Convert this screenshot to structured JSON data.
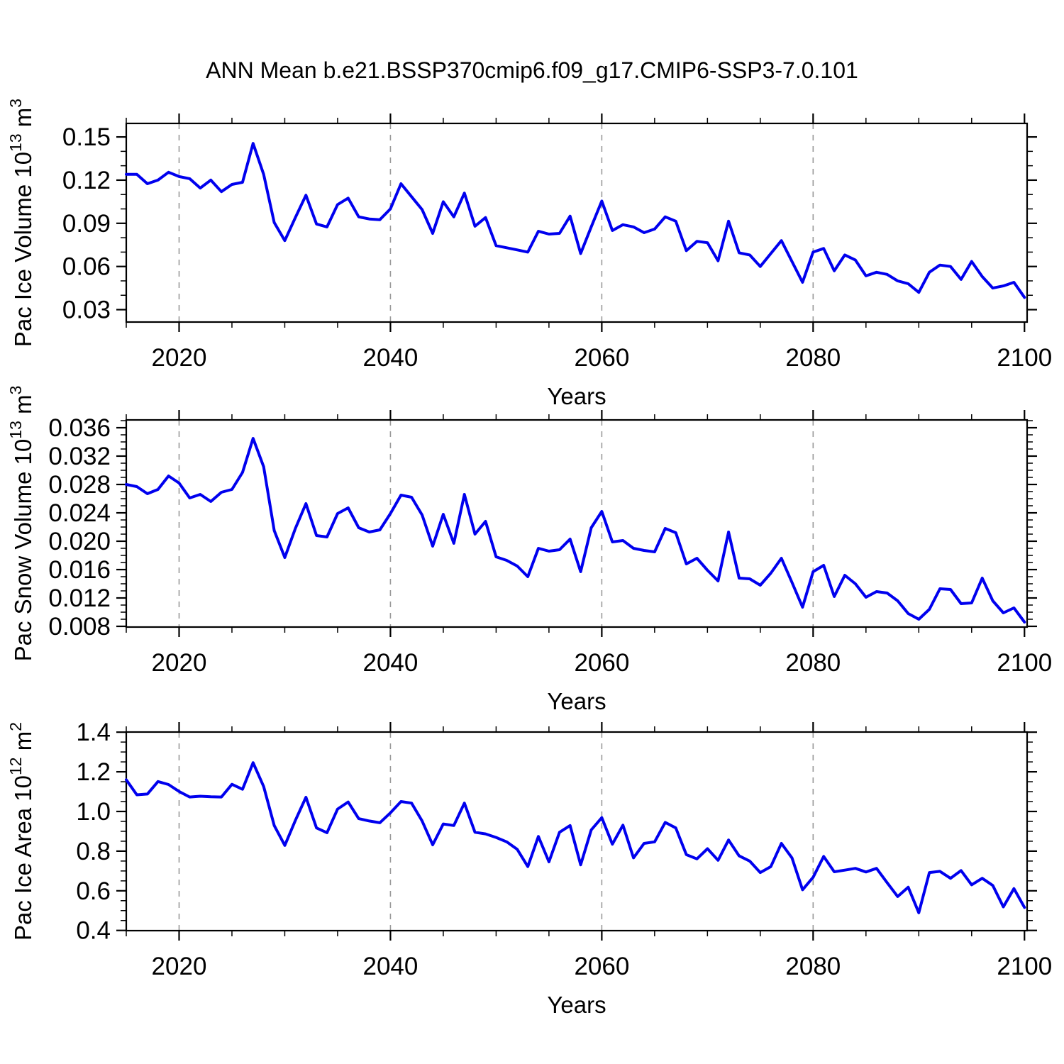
{
  "colors": {
    "line": "#0000EE",
    "grid": "#999999",
    "frame": "#000000",
    "text": "#000000",
    "background": "#FFFFFF"
  },
  "chart_data": {
    "type": "line",
    "title": "ANN Mean b.e21.BSSP370cmip6.f09_g17.CMIP6-SSP3-7.0.101",
    "xlabel": "Years",
    "legend": "none",
    "grid_x": [
      2020,
      2040,
      2060,
      2080
    ],
    "xticks_major": [
      2020,
      2040,
      2060,
      2080,
      2100
    ],
    "xtick_labels": [
      "2020",
      "2040",
      "2060",
      "2080",
      "2100"
    ],
    "xticks_minor_step": 5,
    "xlim": [
      2015,
      2100.25
    ],
    "x": [
      2015,
      2016,
      2017,
      2018,
      2019,
      2020,
      2021,
      2022,
      2023,
      2024,
      2025,
      2026,
      2027,
      2028,
      2029,
      2030,
      2031,
      2032,
      2033,
      2034,
      2035,
      2036,
      2037,
      2038,
      2039,
      2040,
      2041,
      2042,
      2043,
      2044,
      2045,
      2046,
      2047,
      2048,
      2049,
      2050,
      2051,
      2052,
      2053,
      2054,
      2055,
      2056,
      2057,
      2058,
      2059,
      2060,
      2061,
      2062,
      2063,
      2064,
      2065,
      2066,
      2067,
      2068,
      2069,
      2070,
      2071,
      2072,
      2073,
      2074,
      2075,
      2076,
      2077,
      2078,
      2079,
      2080,
      2081,
      2082,
      2083,
      2084,
      2085,
      2086,
      2087,
      2088,
      2089,
      2090,
      2091,
      2092,
      2093,
      2094,
      2095,
      2096,
      2097,
      2098,
      2099,
      2100
    ],
    "panels": [
      {
        "id": "pac-ice-volume",
        "ylabel": "Pac Ice Volume 10^13 m^3",
        "ylabel_parts": [
          [
            "n",
            "Pac Ice Volume 10"
          ],
          [
            "s",
            "13"
          ],
          [
            "n",
            " m"
          ],
          [
            "s",
            "3"
          ]
        ],
        "ytick_labels": [
          "0.03",
          "0.06",
          "0.09",
          "0.12",
          "0.15"
        ],
        "ytick_values": [
          0.03,
          0.06,
          0.09,
          0.12,
          0.15
        ],
        "yminor_step": 0.01,
        "ylim": [
          0.0214,
          0.1594
        ],
        "values": [
          0.124,
          0.124,
          0.1175,
          0.12,
          0.1255,
          0.1225,
          0.121,
          0.1145,
          0.12,
          0.112,
          0.117,
          0.1185,
          0.1455,
          0.124,
          0.0905,
          0.078,
          0.094,
          0.1095,
          0.0895,
          0.0875,
          0.103,
          0.1075,
          0.0945,
          0.093,
          0.0925,
          0.1,
          0.1175,
          0.1085,
          0.0995,
          0.083,
          0.105,
          0.0945,
          0.111,
          0.088,
          0.094,
          0.0745,
          0.073,
          0.0715,
          0.07,
          0.0845,
          0.0825,
          0.083,
          0.095,
          0.069,
          0.0875,
          0.1055,
          0.085,
          0.089,
          0.0875,
          0.0835,
          0.086,
          0.0945,
          0.0915,
          0.071,
          0.0775,
          0.0765,
          0.064,
          0.0915,
          0.0695,
          0.068,
          0.06,
          0.069,
          0.078,
          0.0635,
          0.049,
          0.07,
          0.0725,
          0.057,
          0.068,
          0.0645,
          0.0535,
          0.056,
          0.0545,
          0.05,
          0.048,
          0.042,
          0.056,
          0.061,
          0.06,
          0.051,
          0.0635,
          0.053,
          0.045,
          0.0465,
          0.049,
          0.0385
        ]
      },
      {
        "id": "pac-snow-volume",
        "ylabel": "Pac Snow Volume 10^13 m^3",
        "ylabel_parts": [
          [
            "n",
            "Pac Snow Volume 10"
          ],
          [
            "s",
            "13"
          ],
          [
            "n",
            " m"
          ],
          [
            "s",
            "3"
          ]
        ],
        "ytick_labels": [
          "0.008",
          "0.012",
          "0.016",
          "0.020",
          "0.024",
          "0.028",
          "0.032",
          "0.036"
        ],
        "ytick_values": [
          0.008,
          0.012,
          0.016,
          0.02,
          0.024,
          0.028,
          0.032,
          0.036
        ],
        "yminor_step": 0.001,
        "ylim": [
          0.0079,
          0.0371
        ],
        "values": [
          0.028,
          0.0277,
          0.0267,
          0.0273,
          0.0292,
          0.0282,
          0.0261,
          0.0266,
          0.0256,
          0.0269,
          0.0273,
          0.0297,
          0.0345,
          0.0305,
          0.0215,
          0.0177,
          0.0218,
          0.0253,
          0.0208,
          0.0206,
          0.0239,
          0.0247,
          0.0219,
          0.0213,
          0.0216,
          0.0239,
          0.0265,
          0.0262,
          0.0237,
          0.0193,
          0.0238,
          0.0197,
          0.0266,
          0.021,
          0.0228,
          0.0178,
          0.0173,
          0.0165,
          0.015,
          0.019,
          0.0186,
          0.0188,
          0.0203,
          0.0157,
          0.0219,
          0.0242,
          0.0199,
          0.0201,
          0.019,
          0.0187,
          0.0185,
          0.0218,
          0.0212,
          0.0168,
          0.0176,
          0.0159,
          0.0144,
          0.0213,
          0.0148,
          0.0147,
          0.0138,
          0.0155,
          0.0176,
          0.0142,
          0.0107,
          0.0157,
          0.0166,
          0.0122,
          0.0152,
          0.014,
          0.0121,
          0.0129,
          0.0127,
          0.0116,
          0.0098,
          0.009,
          0.0104,
          0.0133,
          0.0132,
          0.0112,
          0.0113,
          0.0148,
          0.0116,
          0.0099,
          0.0106,
          0.0086
        ]
      },
      {
        "id": "pac-ice-area",
        "ylabel": "Pac Ice Area 10^12 m^2",
        "ylabel_parts": [
          [
            "n",
            "Pac Ice Area 10"
          ],
          [
            "s",
            "12"
          ],
          [
            "n",
            " m"
          ],
          [
            "s",
            "2"
          ]
        ],
        "ytick_labels": [
          "0.4",
          "0.6",
          "0.8",
          "1.0",
          "1.2",
          "1.4"
        ],
        "ytick_values": [
          0.4,
          0.6,
          0.8,
          1.0,
          1.2,
          1.4
        ],
        "yminor_step": 0.05,
        "ylim": [
          0.399,
          1.4006
        ],
        "values": [
          1.16,
          1.084,
          1.088,
          1.151,
          1.136,
          1.101,
          1.073,
          1.077,
          1.074,
          1.073,
          1.137,
          1.112,
          1.246,
          1.126,
          0.929,
          0.829,
          0.955,
          1.072,
          0.917,
          0.893,
          1.012,
          1.048,
          0.964,
          0.952,
          0.943,
          0.993,
          1.05,
          1.042,
          0.952,
          0.832,
          0.937,
          0.929,
          1.042,
          0.895,
          0.887,
          0.869,
          0.847,
          0.809,
          0.722,
          0.874,
          0.746,
          0.895,
          0.929,
          0.731,
          0.907,
          0.969,
          0.835,
          0.931,
          0.766,
          0.839,
          0.847,
          0.945,
          0.917,
          0.782,
          0.761,
          0.812,
          0.754,
          0.856,
          0.776,
          0.75,
          0.692,
          0.722,
          0.839,
          0.766,
          0.605,
          0.668,
          0.773,
          0.696,
          0.704,
          0.713,
          0.695,
          0.713,
          0.641,
          0.571,
          0.618,
          0.489,
          0.692,
          0.698,
          0.663,
          0.702,
          0.63,
          0.663,
          0.627,
          0.519,
          0.611,
          0.516
        ]
      }
    ]
  }
}
